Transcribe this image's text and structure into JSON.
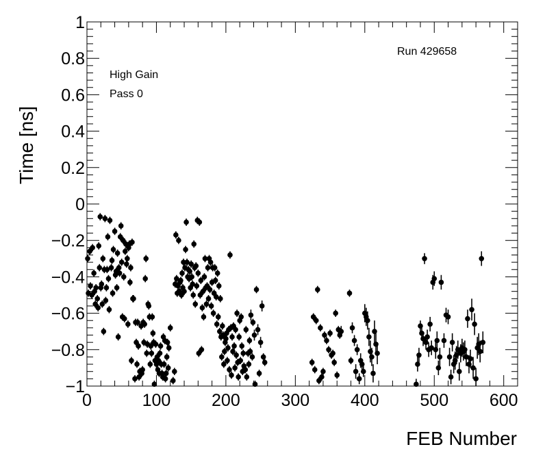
{
  "chart_data": {
    "type": "scatter",
    "title": "",
    "xlabel": "FEB Number",
    "ylabel": "Time [ns]",
    "xlim": [
      0,
      620
    ],
    "ylim": [
      -1,
      1
    ],
    "x_ticks": [
      0,
      100,
      200,
      300,
      400,
      500,
      600
    ],
    "x_tick_labels": [
      "0",
      "100",
      "200",
      "300",
      "400",
      "500",
      "600"
    ],
    "y_ticks": [
      -1,
      -0.8,
      -0.6,
      -0.4,
      -0.2,
      0,
      0.2,
      0.4,
      0.6,
      0.8,
      1
    ],
    "y_tick_labels": [
      "−1",
      "−0.8",
      "−0.6",
      "−0.4",
      "−0.2",
      "0",
      "0.2",
      "0.4",
      "0.6",
      "0.8",
      "1"
    ],
    "grid": false,
    "marker_color": "#000000",
    "annotations": [
      "High Gain",
      "Pass 0",
      "Run 429658"
    ],
    "points": [
      [
        1,
        -0.3,
        0.02
      ],
      [
        2,
        -0.49,
        0.02
      ],
      [
        4,
        -0.26,
        0.02
      ],
      [
        5,
        -0.45,
        0.02
      ],
      [
        7,
        -0.5,
        0.02
      ],
      [
        8,
        -0.24,
        0.02
      ],
      [
        10,
        -0.38,
        0.02
      ],
      [
        11,
        -0.48,
        0.02
      ],
      [
        12,
        -0.55,
        0.02
      ],
      [
        13,
        -0.46,
        0.02
      ],
      [
        15,
        -0.52,
        0.02
      ],
      [
        16,
        -0.57,
        0.02
      ],
      [
        17,
        -0.23,
        0.02
      ],
      [
        18,
        -0.35,
        0.02
      ],
      [
        19,
        -0.07,
        0.02
      ],
      [
        20,
        -0.46,
        0.02
      ],
      [
        21,
        -0.44,
        0.02
      ],
      [
        22,
        -0.55,
        0.02
      ],
      [
        23,
        -0.3,
        0.02
      ],
      [
        24,
        -0.7,
        0.02
      ],
      [
        25,
        -0.36,
        0.02
      ],
      [
        26,
        -0.08,
        0.02
      ],
      [
        27,
        -0.53,
        0.02
      ],
      [
        28,
        -0.46,
        0.02
      ],
      [
        29,
        -0.36,
        0.02
      ],
      [
        30,
        -0.18,
        0.02
      ],
      [
        31,
        -0.41,
        0.02
      ],
      [
        32,
        -0.58,
        0.02
      ],
      [
        33,
        -0.09,
        0.02
      ],
      [
        35,
        -0.35,
        0.02
      ],
      [
        36,
        -0.31,
        0.02
      ],
      [
        37,
        -0.49,
        0.02
      ],
      [
        38,
        -0.25,
        0.02
      ],
      [
        40,
        -0.15,
        0.02
      ],
      [
        41,
        -0.39,
        0.02
      ],
      [
        42,
        -0.37,
        0.02
      ],
      [
        43,
        -0.46,
        0.02
      ],
      [
        44,
        -0.27,
        0.02
      ],
      [
        45,
        -0.73,
        0.02
      ],
      [
        46,
        -0.35,
        0.02
      ],
      [
        47,
        -0.38,
        0.02
      ],
      [
        48,
        -0.18,
        0.02
      ],
      [
        49,
        -0.12,
        0.02
      ],
      [
        50,
        -0.32,
        0.02
      ],
      [
        51,
        -0.62,
        0.02
      ],
      [
        52,
        -0.2,
        0.02
      ],
      [
        53,
        -0.4,
        0.02
      ],
      [
        54,
        -0.63,
        0.02
      ],
      [
        55,
        -0.26,
        0.02
      ],
      [
        56,
        -0.22,
        0.02
      ],
      [
        57,
        -0.33,
        0.02
      ],
      [
        58,
        -0.3,
        0.02
      ],
      [
        59,
        -0.66,
        0.02
      ],
      [
        60,
        -0.24,
        0.02
      ],
      [
        61,
        -0.22,
        0.02
      ],
      [
        62,
        -0.43,
        0.02
      ],
      [
        63,
        -0.35,
        0.02
      ],
      [
        64,
        -0.86,
        0.02
      ],
      [
        65,
        -0.21,
        0.02
      ],
      [
        66,
        -0.52,
        0.02
      ],
      [
        67,
        -0.52,
        0.02
      ],
      [
        69,
        -0.96,
        0.02
      ],
      [
        70,
        -0.65,
        0.02
      ],
      [
        71,
        -0.76,
        0.02
      ],
      [
        72,
        -0.88,
        0.02
      ],
      [
        73,
        -0.65,
        0.02
      ],
      [
        74,
        -0.78,
        0.02
      ],
      [
        75,
        -0.95,
        0.02
      ],
      [
        76,
        -0.92,
        0.02
      ],
      [
        78,
        -0.67,
        0.02
      ],
      [
        79,
        -0.93,
        0.02
      ],
      [
        80,
        -0.91,
        0.02
      ],
      [
        81,
        -0.65,
        0.02
      ],
      [
        82,
        -0.76,
        0.02
      ],
      [
        83,
        -0.66,
        0.02
      ],
      [
        84,
        -0.41,
        0.02
      ],
      [
        85,
        -0.3,
        0.02
      ],
      [
        86,
        -0.82,
        0.02
      ],
      [
        87,
        -0.77,
        0.02
      ],
      [
        88,
        -0.55,
        0.02
      ],
      [
        89,
        -0.56,
        0.02
      ],
      [
        90,
        -0.62,
        0.02
      ],
      [
        91,
        -0.88,
        0.02
      ],
      [
        92,
        -0.78,
        0.02
      ],
      [
        93,
        -0.82,
        0.02
      ],
      [
        94,
        -0.62,
        0.02
      ],
      [
        95,
        -0.71,
        0.02
      ],
      [
        96,
        -0.76,
        0.02
      ],
      [
        97,
        -0.99,
        0.02
      ],
      [
        98,
        -0.86,
        0.02
      ],
      [
        99,
        -0.77,
        0.02
      ],
      [
        100,
        -0.88,
        0.02
      ],
      [
        101,
        -0.84,
        0.02
      ],
      [
        102,
        -0.91,
        0.02
      ],
      [
        103,
        -0.86,
        0.02
      ],
      [
        104,
        -0.93,
        0.02
      ],
      [
        105,
        -0.82,
        0.02
      ],
      [
        106,
        -0.78,
        0.02
      ],
      [
        107,
        -0.88,
        0.02
      ],
      [
        108,
        -0.93,
        0.02
      ],
      [
        109,
        -0.95,
        0.02
      ],
      [
        110,
        -0.73,
        0.02
      ],
      [
        111,
        -0.88,
        0.02
      ],
      [
        112,
        -0.75,
        0.02
      ],
      [
        113,
        -0.96,
        0.02
      ],
      [
        114,
        -0.93,
        0.02
      ],
      [
        115,
        -0.84,
        0.02
      ],
      [
        116,
        -0.76,
        0.02
      ],
      [
        117,
        -0.9,
        0.02
      ],
      [
        118,
        -0.79,
        0.02
      ],
      [
        120,
        -0.68,
        0.02
      ],
      [
        124,
        -0.97,
        0.02
      ],
      [
        126,
        -0.92,
        0.02
      ],
      [
        127,
        -0.44,
        0.02
      ],
      [
        128,
        -0.17,
        0.02
      ],
      [
        129,
        -0.41,
        0.02
      ],
      [
        130,
        -0.49,
        0.02
      ],
      [
        131,
        -0.45,
        0.02
      ],
      [
        132,
        -0.2,
        0.02
      ],
      [
        133,
        -0.48,
        0.02
      ],
      [
        134,
        -0.43,
        0.02
      ],
      [
        135,
        -0.42,
        0.02
      ],
      [
        136,
        -0.5,
        0.02
      ],
      [
        137,
        -0.38,
        0.02
      ],
      [
        138,
        -0.46,
        0.02
      ],
      [
        139,
        -0.32,
        0.02
      ],
      [
        140,
        -0.48,
        0.02
      ],
      [
        141,
        -0.35,
        0.02
      ],
      [
        142,
        -0.25,
        0.02
      ],
      [
        143,
        -0.1,
        0.02
      ],
      [
        144,
        -0.32,
        0.02
      ],
      [
        145,
        -0.4,
        0.02
      ],
      [
        146,
        -0.36,
        0.02
      ],
      [
        147,
        -0.41,
        0.02
      ],
      [
        148,
        -0.37,
        0.02
      ],
      [
        149,
        -0.46,
        0.02
      ],
      [
        150,
        -0.33,
        0.02
      ],
      [
        151,
        -0.4,
        0.02
      ],
      [
        152,
        -0.44,
        0.02
      ],
      [
        153,
        -0.5,
        0.02
      ],
      [
        154,
        -0.22,
        0.02
      ],
      [
        155,
        -0.35,
        0.02
      ],
      [
        156,
        -0.55,
        0.02
      ],
      [
        157,
        -0.34,
        0.02
      ],
      [
        158,
        -0.45,
        0.02
      ],
      [
        159,
        -0.09,
        0.02
      ],
      [
        160,
        -0.38,
        0.02
      ],
      [
        161,
        -0.82,
        0.02
      ],
      [
        162,
        -0.1,
        0.02
      ],
      [
        163,
        -0.5,
        0.02
      ],
      [
        164,
        -0.42,
        0.02
      ],
      [
        165,
        -0.8,
        0.02
      ],
      [
        166,
        -0.57,
        0.02
      ],
      [
        167,
        -0.48,
        0.02
      ],
      [
        168,
        -0.62,
        0.02
      ],
      [
        169,
        -0.4,
        0.02
      ],
      [
        170,
        -0.3,
        0.02
      ],
      [
        171,
        -0.46,
        0.02
      ],
      [
        172,
        -0.55,
        0.02
      ],
      [
        173,
        -0.45,
        0.02
      ],
      [
        174,
        -0.35,
        0.02
      ],
      [
        175,
        -0.52,
        0.02
      ],
      [
        176,
        -0.3,
        0.02
      ],
      [
        177,
        -0.47,
        0.02
      ],
      [
        178,
        -0.32,
        0.02
      ],
      [
        179,
        -0.56,
        0.02
      ],
      [
        180,
        -0.43,
        0.02
      ],
      [
        181,
        -0.35,
        0.02
      ],
      [
        182,
        -0.6,
        0.02
      ],
      [
        183,
        -0.49,
        0.02
      ],
      [
        184,
        -0.35,
        0.02
      ],
      [
        185,
        -0.42,
        0.02
      ],
      [
        186,
        -0.51,
        0.02
      ],
      [
        187,
        -0.66,
        0.02
      ],
      [
        188,
        -0.38,
        0.02
      ],
      [
        189,
        -0.62,
        0.02
      ],
      [
        190,
        -0.45,
        0.02
      ],
      [
        191,
        -0.7,
        0.02
      ],
      [
        192,
        -0.52,
        0.02
      ],
      [
        193,
        -0.73,
        0.02
      ],
      [
        194,
        -0.84,
        0.02
      ],
      [
        195,
        -0.67,
        0.02
      ],
      [
        196,
        -0.72,
        0.02
      ],
      [
        197,
        -0.88,
        0.02
      ],
      [
        198,
        -0.81,
        0.02
      ],
      [
        199,
        -0.76,
        0.02
      ],
      [
        200,
        -0.74,
        0.02
      ],
      [
        201,
        -0.71,
        0.02
      ],
      [
        202,
        -0.86,
        0.02
      ],
      [
        203,
        -0.79,
        0.02
      ],
      [
        204,
        -0.69,
        0.02
      ],
      [
        205,
        -0.91,
        0.02
      ],
      [
        206,
        -0.28,
        0.02
      ],
      [
        207,
        -0.68,
        0.02
      ],
      [
        208,
        -0.94,
        0.02
      ],
      [
        209,
        -0.73,
        0.02
      ],
      [
        210,
        -0.81,
        0.02
      ],
      [
        211,
        -0.67,
        0.02
      ],
      [
        212,
        -0.78,
        0.02
      ],
      [
        213,
        -0.9,
        0.02
      ],
      [
        214,
        -0.69,
        0.02
      ],
      [
        215,
        -0.83,
        0.02
      ],
      [
        216,
        -0.6,
        0.02
      ],
      [
        217,
        -0.87,
        0.02
      ],
      [
        218,
        -0.95,
        0.02
      ],
      [
        219,
        -0.73,
        0.02
      ],
      [
        220,
        -0.64,
        0.02
      ],
      [
        221,
        -0.86,
        0.02
      ],
      [
        222,
        -0.62,
        0.02
      ],
      [
        223,
        -0.78,
        0.02
      ],
      [
        224,
        -0.92,
        0.02
      ],
      [
        225,
        -0.82,
        0.02
      ],
      [
        226,
        -0.89,
        0.02
      ],
      [
        228,
        -0.91,
        0.02
      ],
      [
        229,
        -0.69,
        0.02
      ],
      [
        230,
        -0.95,
        0.02
      ],
      [
        232,
        -0.82,
        0.02
      ],
      [
        233,
        -0.88,
        0.02
      ],
      [
        234,
        -0.75,
        0.02
      ],
      [
        235,
        -0.81,
        0.02
      ],
      [
        236,
        -0.61,
        0.03
      ],
      [
        238,
        -0.84,
        0.02
      ],
      [
        239,
        -0.65,
        0.02
      ],
      [
        241,
        -0.72,
        0.03
      ],
      [
        242,
        -0.99,
        0.02
      ],
      [
        244,
        -0.47,
        0.02
      ],
      [
        246,
        -0.69,
        0.03
      ],
      [
        248,
        -0.93,
        0.02
      ],
      [
        250,
        -0.76,
        0.03
      ],
      [
        252,
        -0.56,
        0.03
      ],
      [
        254,
        -0.84,
        0.02
      ],
      [
        256,
        -0.87,
        0.02
      ],
      [
        324,
        -0.87,
        0.02
      ],
      [
        326,
        -0.62,
        0.02
      ],
      [
        328,
        -0.91,
        0.02
      ],
      [
        330,
        -0.64,
        0.02
      ],
      [
        332,
        -0.47,
        0.02
      ],
      [
        334,
        -0.97,
        0.02
      ],
      [
        336,
        -0.68,
        0.02
      ],
      [
        338,
        -0.95,
        0.02
      ],
      [
        340,
        -0.92,
        0.02
      ],
      [
        342,
        -0.72,
        0.02
      ],
      [
        345,
        -0.75,
        0.02
      ],
      [
        348,
        -0.8,
        0.02
      ],
      [
        350,
        -0.71,
        0.02
      ],
      [
        352,
        -0.83,
        0.02
      ],
      [
        354,
        -0.82,
        0.02
      ],
      [
        356,
        -0.87,
        0.02
      ],
      [
        358,
        -0.6,
        0.02
      ],
      [
        360,
        -0.94,
        0.02
      ],
      [
        362,
        -0.69,
        0.02
      ],
      [
        364,
        -0.72,
        0.02
      ],
      [
        366,
        -0.7,
        0.03
      ],
      [
        378,
        -0.49,
        0.02
      ],
      [
        380,
        -0.86,
        0.02
      ],
      [
        382,
        -0.68,
        0.03
      ],
      [
        385,
        -0.75,
        0.03
      ],
      [
        387,
        -0.92,
        0.04
      ],
      [
        389,
        -0.8,
        0.03
      ],
      [
        392,
        -0.96,
        0.03
      ],
      [
        394,
        -0.86,
        0.04
      ],
      [
        396,
        -0.88,
        0.03
      ],
      [
        398,
        -0.92,
        0.03
      ],
      [
        400,
        -0.6,
        0.05
      ],
      [
        402,
        -0.62,
        0.05
      ],
      [
        404,
        -0.64,
        0.05
      ],
      [
        406,
        -0.73,
        0.05
      ],
      [
        408,
        -0.81,
        0.06
      ],
      [
        410,
        -0.84,
        0.05
      ],
      [
        412,
        -0.93,
        0.05
      ],
      [
        414,
        -0.7,
        0.06
      ],
      [
        416,
        -0.77,
        0.06
      ],
      [
        418,
        -0.82,
        0.06
      ],
      [
        474,
        -0.99,
        0.03
      ],
      [
        476,
        -0.88,
        0.04
      ],
      [
        478,
        -0.83,
        0.04
      ],
      [
        480,
        -0.67,
        0.03
      ],
      [
        482,
        -0.71,
        0.04
      ],
      [
        484,
        -0.74,
        0.04
      ],
      [
        486,
        -0.3,
        0.03
      ],
      [
        488,
        -0.76,
        0.04
      ],
      [
        490,
        -0.73,
        0.04
      ],
      [
        492,
        -0.8,
        0.04
      ],
      [
        494,
        -0.66,
        0.04
      ],
      [
        496,
        -0.79,
        0.04
      ],
      [
        498,
        -0.43,
        0.04
      ],
      [
        500,
        -0.41,
        0.04
      ],
      [
        502,
        -0.8,
        0.05
      ],
      [
        504,
        -0.75,
        0.05
      ],
      [
        506,
        -0.9,
        0.04
      ],
      [
        508,
        -0.84,
        0.05
      ],
      [
        510,
        -0.43,
        0.04
      ],
      [
        514,
        -0.75,
        0.04
      ],
      [
        517,
        -0.61,
        0.04
      ],
      [
        520,
        -0.62,
        0.04
      ],
      [
        522,
        -0.84,
        0.05
      ],
      [
        524,
        -0.95,
        0.04
      ],
      [
        526,
        -0.76,
        0.05
      ],
      [
        528,
        -0.88,
        0.05
      ],
      [
        530,
        -0.86,
        0.05
      ],
      [
        532,
        -0.83,
        0.05
      ],
      [
        534,
        -0.8,
        0.05
      ],
      [
        536,
        -0.92,
        0.05
      ],
      [
        538,
        -0.82,
        0.05
      ],
      [
        540,
        -0.79,
        0.05
      ],
      [
        542,
        -0.81,
        0.05
      ],
      [
        544,
        -0.8,
        0.05
      ],
      [
        546,
        -0.84,
        0.05
      ],
      [
        548,
        -0.63,
        0.05
      ],
      [
        550,
        -0.88,
        0.05
      ],
      [
        552,
        -0.85,
        0.05
      ],
      [
        554,
        -0.58,
        0.06
      ],
      [
        556,
        -0.9,
        0.06
      ],
      [
        558,
        -0.66,
        0.06
      ],
      [
        560,
        -0.96,
        0.06
      ],
      [
        562,
        -0.79,
        0.06
      ],
      [
        564,
        -0.77,
        0.06
      ],
      [
        566,
        -0.81,
        0.06
      ],
      [
        568,
        -0.3,
        0.04
      ],
      [
        570,
        -0.76,
        0.06
      ]
    ]
  }
}
